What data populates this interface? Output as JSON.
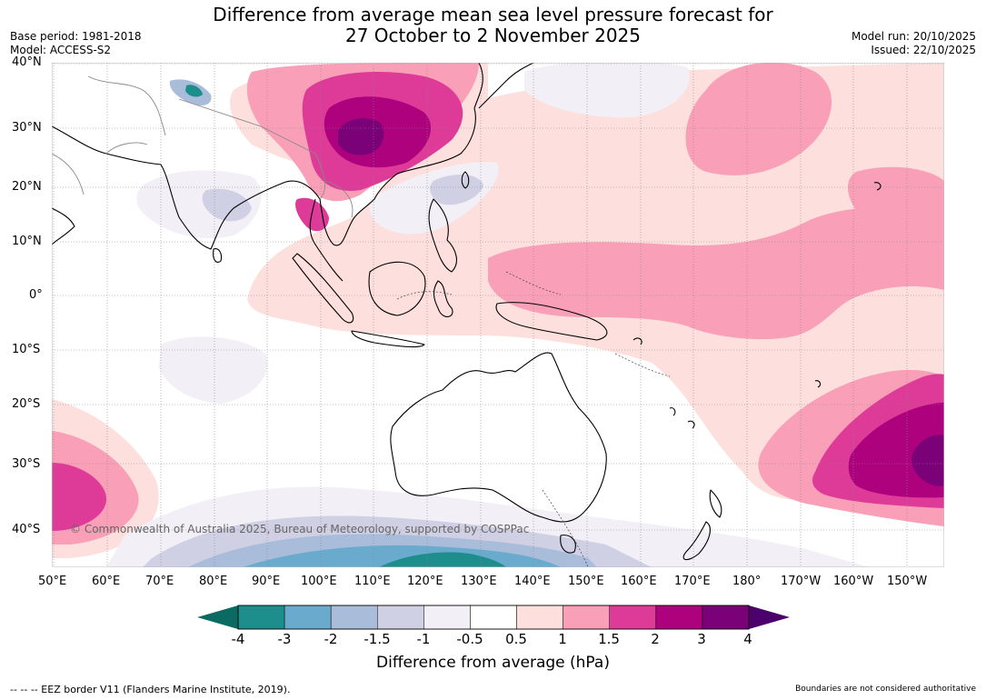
{
  "title": {
    "line1": "Difference from average mean sea level pressure forecast for",
    "line2": "27 October to 2 November 2025"
  },
  "left_meta": {
    "base_period": "Base period: 1981-2018",
    "model": "Model: ACCESS-S2"
  },
  "right_meta": {
    "model_run": "Model run: 20/10/2025",
    "issued": "Issued: 22/10/2025"
  },
  "map": {
    "lat_labels": [
      "40°N",
      "30°N",
      "20°N",
      "10°N",
      "0°",
      "10°S",
      "20°S",
      "30°S",
      "40°S"
    ],
    "lon_labels": [
      "50°E",
      "60°E",
      "70°E",
      "80°E",
      "90°E",
      "100°E",
      "110°E",
      "120°E",
      "130°E",
      "140°E",
      "150°E",
      "160°E",
      "170°E",
      "180°",
      "170°W",
      "160°W",
      "150°W"
    ],
    "copyright": "© Commonwealth of Australia 2025, Bureau of Meteorology, supported by COSPPac"
  },
  "colorbar": {
    "ticks": [
      "-4",
      "-3",
      "-2",
      "-1.5",
      "-1",
      "-0.5",
      "0.5",
      "1",
      "1.5",
      "2",
      "3",
      "4"
    ],
    "colors": [
      "#1e8e8c",
      "#6aaacd",
      "#a9bcd9",
      "#cfd0e4",
      "#f3eff6",
      "#ffffff",
      "#fde0dd",
      "#f99fb8",
      "#de3a98",
      "#ad017e",
      "#7a0177"
    ],
    "under_color": "#0b6b62",
    "over_color": "#4b006b",
    "label": "Difference from average (hPa)"
  },
  "footer": {
    "eez": "--  --  -- EEZ border V11 (Flanders Marine Institute, 2019).",
    "disclaimer": "Boundaries are not considered authoritative"
  }
}
